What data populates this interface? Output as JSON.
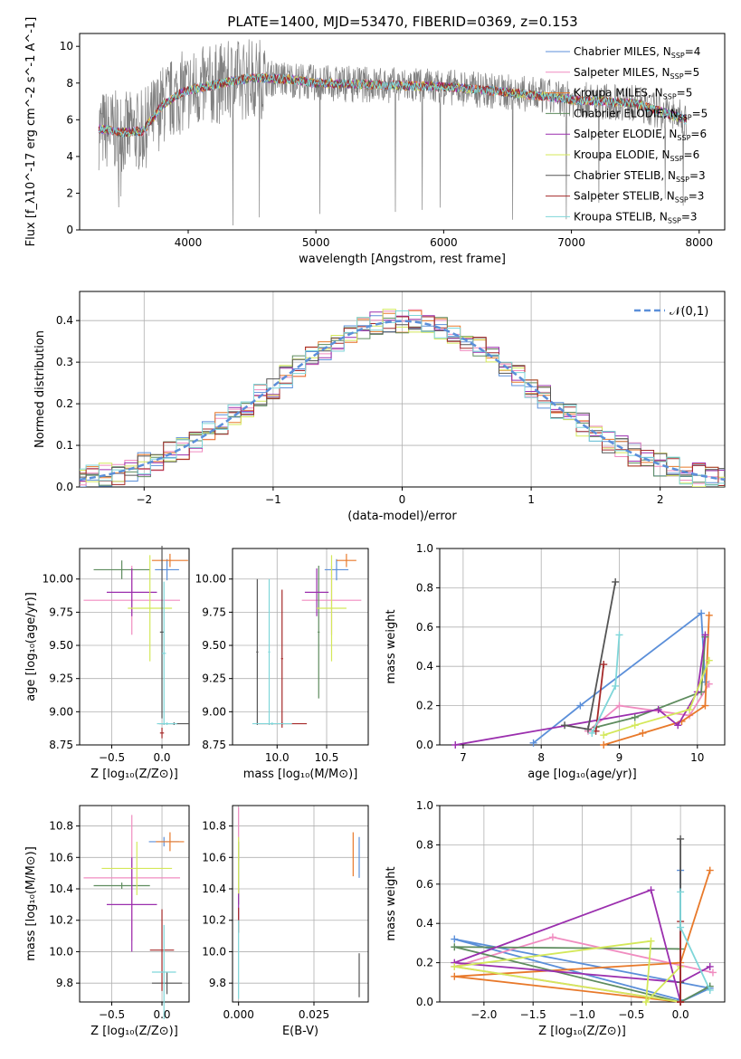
{
  "title": "PLATE=1400, MJD=53470, FIBERID=0369, z=0.153",
  "colors": [
    "#5b8fd9",
    "#f08cc0",
    "#e8792a",
    "#5e8c5e",
    "#9b2fae",
    "#d4e85a",
    "#555555",
    "#a52a2a",
    "#7fd6d9"
  ],
  "chart_data": [
    {
      "type": "line",
      "xlabel": "wavelength [Angstrom, rest frame]",
      "ylabel": "Flux [f_λ10^-17 erg cm^-2 s^-1 A^-1]",
      "xlim": [
        3150,
        8200
      ],
      "ylim": [
        0,
        10.7
      ],
      "xticks": [
        4000,
        5000,
        6000,
        7000,
        8000
      ],
      "yticks": [
        0,
        2,
        4,
        6,
        8,
        10
      ],
      "legend_position": "right",
      "legend": [
        "Chabrier MILES, N_SSP=4",
        "Salpeter MILES, N_SSP=5",
        "Kroupa MILES, N_SSP=5",
        "Chabrier ELODIE, N_SSP=5",
        "Salpeter ELODIE, N_SSP=6",
        "Kroupa ELODIE, N_SSP=6",
        "Chabrier STELIB, N_SSP=3",
        "Salpeter STELIB, N_SSP=3",
        "Kroupa STELIB, N_SSP=3"
      ],
      "continuum": [
        [
          3300,
          5.5
        ],
        [
          3500,
          5.3
        ],
        [
          3650,
          5.4
        ],
        [
          3800,
          6.8
        ],
        [
          3950,
          7.5
        ],
        [
          4200,
          7.9
        ],
        [
          4500,
          8.3
        ],
        [
          4800,
          8.2
        ],
        [
          5000,
          8.0
        ],
        [
          5500,
          7.9
        ],
        [
          6000,
          7.8
        ],
        [
          6500,
          7.5
        ],
        [
          7000,
          7.1
        ],
        [
          7500,
          6.9
        ],
        [
          7900,
          6.0
        ]
      ]
    },
    {
      "type": "histogram",
      "xlabel": "(data-model)/error",
      "ylabel": "Normed distribution",
      "xlim": [
        -2.5,
        2.5
      ],
      "ylim": [
        0,
        0.47
      ],
      "xticks": [
        -2,
        -1,
        0,
        1,
        2
      ],
      "yticks": [
        0.0,
        0.1,
        0.2,
        0.3,
        0.4
      ],
      "curve_label": "𝒩(0,1)",
      "curve": "normal pdf, mean 0, sigma 1",
      "bin_width": 0.1
    },
    {
      "type": "scatter",
      "xlabel": "Z [log₁₀(Z/Z⊙)]",
      "ylabel": "age  [log₁₀(age/yr)]",
      "xlim": [
        -0.82,
        0.27
      ],
      "ylim": [
        8.75,
        10.23
      ],
      "xticks": [
        -0.5,
        0.0
      ],
      "yticks": [
        8.75,
        9.0,
        9.25,
        9.5,
        9.75,
        10.0
      ],
      "points": [
        {
          "x": 0.05,
          "y": 10.07,
          "xerr": 0.12,
          "yerr": 0.08,
          "c": 0
        },
        {
          "x": -0.3,
          "y": 9.84,
          "xerr": 0.48,
          "yerr": 0.26,
          "c": 1
        },
        {
          "x": 0.08,
          "y": 10.14,
          "xerr": 0.18,
          "yerr": 0.05,
          "c": 2
        },
        {
          "x": -0.4,
          "y": 10.07,
          "xerr": 0.28,
          "yerr": 0.07,
          "c": 3
        },
        {
          "x": -0.3,
          "y": 9.9,
          "xerr": 0.25,
          "yerr": 0.18,
          "c": 4
        },
        {
          "x": -0.12,
          "y": 9.78,
          "xerr": 0.22,
          "yerr": 0.4,
          "c": 5
        },
        {
          "x": 0.0,
          "y": 9.6,
          "xerr": 0.02,
          "yerr": 0.65,
          "c": 6
        },
        {
          "x": 0.0,
          "y": 8.84,
          "xerr": 0.02,
          "yerr": 0.04,
          "c": 7
        },
        {
          "x": 0.02,
          "y": 9.44,
          "xerr": 0.02,
          "yerr": 0.54,
          "c": 8
        },
        {
          "x": 0.12,
          "y": 8.91,
          "xerr": 0.15,
          "yerr": 0.01,
          "c": 6
        },
        {
          "x": 0.05,
          "y": 8.91,
          "xerr": 0.1,
          "yerr": 0.01,
          "c": 8
        }
      ]
    },
    {
      "type": "scatter",
      "xlabel": "mass [log₁₀(M/M⊙)]",
      "ylabel": "",
      "xlim": [
        9.55,
        10.92
      ],
      "ylim": [
        8.75,
        10.23
      ],
      "xticks": [
        10.0,
        10.5
      ],
      "yticks": [
        8.75,
        9.0,
        9.25,
        9.5,
        9.75,
        10.0
      ],
      "points": [
        {
          "x": 10.6,
          "y": 10.07,
          "xerr": 0.12,
          "yerr": 0.08,
          "c": 0
        },
        {
          "x": 10.55,
          "y": 9.84,
          "xerr": 0.3,
          "yerr": 0.26,
          "c": 1
        },
        {
          "x": 10.7,
          "y": 10.14,
          "xerr": 0.1,
          "yerr": 0.05,
          "c": 2
        },
        {
          "x": 10.42,
          "y": 9.6,
          "xerr": 0.01,
          "yerr": 0.5,
          "c": 3
        },
        {
          "x": 10.4,
          "y": 9.9,
          "xerr": 0.12,
          "yerr": 0.18,
          "c": 4
        },
        {
          "x": 10.55,
          "y": 9.78,
          "xerr": 0.15,
          "yerr": 0.4,
          "c": 5
        },
        {
          "x": 9.8,
          "y": 9.45,
          "xerr": 0.01,
          "yerr": 0.55,
          "c": 6
        },
        {
          "x": 10.05,
          "y": 9.4,
          "xerr": 0.01,
          "yerr": 0.52,
          "c": 7
        },
        {
          "x": 9.92,
          "y": 9.45,
          "xerr": 0.01,
          "yerr": 0.55,
          "c": 8
        },
        {
          "x": 10.05,
          "y": 8.91,
          "xerr": 0.25,
          "yerr": 0.01,
          "c": 7
        },
        {
          "x": 9.95,
          "y": 8.91,
          "xerr": 0.2,
          "yerr": 0.01,
          "c": 8
        }
      ]
    },
    {
      "type": "line",
      "xlabel": "age  [log₁₀(age/yr)]",
      "ylabel": "mass weight",
      "xlim": [
        6.7,
        10.35
      ],
      "ylim": [
        0,
        1.0
      ],
      "xticks": [
        7,
        8,
        9,
        10
      ],
      "yticks": [
        0.0,
        0.2,
        0.4,
        0.6,
        0.8,
        1.0
      ],
      "series": [
        {
          "c": 0,
          "x": [
            7.9,
            8.5,
            10.05,
            10.1
          ],
          "y": [
            0.01,
            0.2,
            0.67,
            0.32
          ]
        },
        {
          "c": 1,
          "x": [
            8.6,
            9.0,
            9.9,
            10.15
          ],
          "y": [
            0.07,
            0.2,
            0.15,
            0.31
          ]
        },
        {
          "c": 2,
          "x": [
            8.8,
            9.3,
            9.8,
            10.1,
            10.15
          ],
          "y": [
            0.0,
            0.06,
            0.12,
            0.2,
            0.66
          ]
        },
        {
          "c": 3,
          "x": [
            8.7,
            9.2,
            10.05,
            10.1
          ],
          "y": [
            0.09,
            0.14,
            0.27,
            0.55
          ]
        },
        {
          "c": 4,
          "x": [
            6.9,
            9.5,
            9.75,
            10.0,
            10.1
          ],
          "y": [
            0.0,
            0.18,
            0.1,
            0.27,
            0.56
          ]
        },
        {
          "c": 5,
          "x": [
            8.8,
            9.2,
            9.9,
            10.15
          ],
          "y": [
            0.05,
            0.1,
            0.18,
            0.43
          ]
        },
        {
          "c": 6,
          "x": [
            8.3,
            8.6,
            8.95
          ],
          "y": [
            0.1,
            0.08,
            0.83
          ]
        },
        {
          "c": 7,
          "x": [
            8.7,
            8.8
          ],
          "y": [
            0.07,
            0.41
          ]
        },
        {
          "c": 8,
          "x": [
            8.65,
            8.95,
            9.0
          ],
          "y": [
            0.06,
            0.3,
            0.56
          ]
        }
      ]
    },
    {
      "type": "scatter",
      "xlabel": "Z [log₁₀(Z/Z⊙)]",
      "ylabel": "mass [log₁₀(M/M⊙)]",
      "xlim": [
        -0.82,
        0.27
      ],
      "ylim": [
        9.68,
        10.93
      ],
      "xticks": [
        -0.5,
        0.0
      ],
      "yticks": [
        9.8,
        10.0,
        10.2,
        10.4,
        10.6,
        10.8
      ],
      "points": [
        {
          "x": 0.02,
          "y": 10.7,
          "xerr": 0.15,
          "yerr": 0.03,
          "c": 0
        },
        {
          "x": -0.3,
          "y": 10.47,
          "xerr": 0.48,
          "yerr": 0.4,
          "c": 1
        },
        {
          "x": 0.08,
          "y": 10.7,
          "xerr": 0.14,
          "yerr": 0.06,
          "c": 2
        },
        {
          "x": -0.4,
          "y": 10.42,
          "xerr": 0.28,
          "yerr": 0.02,
          "c": 3
        },
        {
          "x": -0.3,
          "y": 10.3,
          "xerr": 0.25,
          "yerr": 0.3,
          "c": 4
        },
        {
          "x": -0.25,
          "y": 10.53,
          "xerr": 0.35,
          "yerr": 0.17,
          "c": 5
        },
        {
          "x": 0.05,
          "y": 9.8,
          "xerr": 0.15,
          "yerr": 0.07,
          "c": 6
        },
        {
          "x": 0.0,
          "y": 10.01,
          "xerr": 0.12,
          "yerr": 0.26,
          "c": 7
        },
        {
          "x": 0.02,
          "y": 9.87,
          "xerr": 0.12,
          "yerr": 0.3,
          "c": 8
        }
      ]
    },
    {
      "type": "scatter",
      "xlabel": "E(B-V)",
      "ylabel": "",
      "xlim": [
        -0.002,
        0.043
      ],
      "ylim": [
        9.68,
        10.93
      ],
      "xticks": [
        0.0,
        0.025
      ],
      "yticks": [
        9.8,
        10.0,
        10.2,
        10.4,
        10.6,
        10.8
      ],
      "points": [
        {
          "x": 0.04,
          "y": 10.6,
          "xerr": 0.0,
          "yerr": 0.13,
          "c": 0
        },
        {
          "x": 0.0,
          "y": 10.75,
          "xerr": 0.0,
          "yerr": 0.17,
          "c": 1
        },
        {
          "x": 0.038,
          "y": 10.62,
          "xerr": 0.0,
          "yerr": 0.14,
          "c": 2
        },
        {
          "x": 0.0,
          "y": 10.5,
          "xerr": 0.0,
          "yerr": 0.2,
          "c": 3
        },
        {
          "x": 0.0,
          "y": 10.3,
          "xerr": 0.0,
          "yerr": 0.1,
          "c": 4
        },
        {
          "x": 0.0,
          "y": 10.55,
          "xerr": 0.0,
          "yerr": 0.18,
          "c": 5
        },
        {
          "x": 0.04,
          "y": 9.85,
          "xerr": 0.0,
          "yerr": 0.14,
          "c": 6
        },
        {
          "x": 0.0,
          "y": 10.2,
          "xerr": 0.0,
          "yerr": 0.08,
          "c": 7
        },
        {
          "x": 0.0,
          "y": 9.95,
          "xerr": 0.0,
          "yerr": 0.25,
          "c": 8
        }
      ]
    },
    {
      "type": "line",
      "xlabel": "Z [log₁₀(Z/Z⊙)]",
      "ylabel": "mass weight",
      "xlim": [
        -2.45,
        0.45
      ],
      "ylim": [
        0,
        1.0
      ],
      "xticks": [
        -2.0,
        -1.5,
        -1.0,
        -0.5,
        0.0
      ],
      "yticks": [
        0.0,
        0.2,
        0.4,
        0.6,
        0.8,
        1.0
      ],
      "series": [
        {
          "c": 0,
          "x": [
            0.0,
            0.0,
            0.3,
            -2.3,
            0.0
          ],
          "y": [
            0.67,
            0.0,
            0.07,
            0.32,
            0.01
          ]
        },
        {
          "c": 1,
          "x": [
            0.33,
            -1.3,
            -2.3,
            0.0
          ],
          "y": [
            0.15,
            0.33,
            0.18,
            0.0
          ]
        },
        {
          "c": 2,
          "x": [
            0.3,
            0.0,
            -2.3,
            0.0
          ],
          "y": [
            0.67,
            0.2,
            0.13,
            0.0
          ]
        },
        {
          "c": 3,
          "x": [
            0.0,
            -2.3,
            0.0,
            0.3
          ],
          "y": [
            0.27,
            0.28,
            0.0,
            0.08
          ]
        },
        {
          "c": 4,
          "x": [
            0.3,
            0.0,
            -2.3,
            -0.3,
            0.0
          ],
          "y": [
            0.18,
            0.1,
            0.2,
            0.57,
            0.0
          ]
        },
        {
          "c": 5,
          "x": [
            0.0,
            -0.35,
            -0.3,
            -2.3,
            0.0
          ],
          "y": [
            0.18,
            0.0,
            0.31,
            0.18,
            0.0
          ]
        },
        {
          "c": 6,
          "x": [
            0.0,
            0.0,
            0.0
          ],
          "y": [
            0.83,
            0.1,
            0.0
          ]
        },
        {
          "c": 7,
          "x": [
            0.0,
            0.0,
            0.0
          ],
          "y": [
            0.41,
            0.0,
            0.0
          ]
        },
        {
          "c": 8,
          "x": [
            0.0,
            0.0,
            0.3
          ],
          "y": [
            0.56,
            0.38,
            0.06
          ]
        }
      ]
    }
  ]
}
